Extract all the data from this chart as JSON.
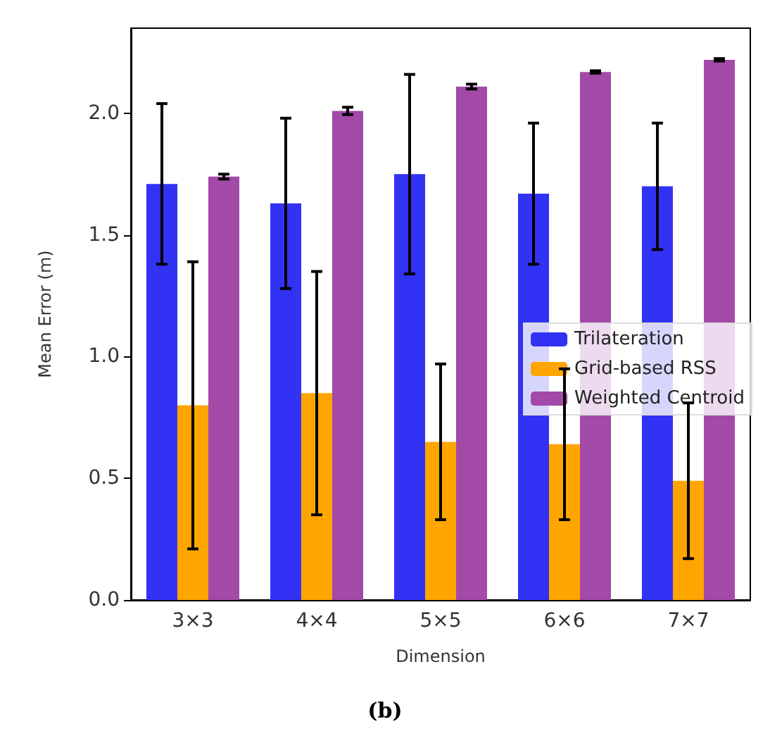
{
  "chart_data": {
    "type": "bar",
    "xlabel": "Dimension",
    "ylabel": "Mean Error (m)",
    "annotations": [
      "(b)"
    ],
    "categories": [
      "3×3",
      "4×4",
      "5×5",
      "6×6",
      "7×7"
    ],
    "series": [
      {
        "name": "Trilateration",
        "color": "#3232f5",
        "values": [
          1.71,
          1.63,
          1.75,
          1.67,
          1.7
        ],
        "errors": [
          0.33,
          0.35,
          0.41,
          0.29,
          0.26
        ]
      },
      {
        "name": "Grid-based RSS",
        "color": "#ffa500",
        "values": [
          0.8,
          0.85,
          0.65,
          0.64,
          0.49
        ],
        "errors": [
          0.59,
          0.5,
          0.32,
          0.31,
          0.32
        ]
      },
      {
        "name": "Weighted Centroid",
        "color": "#a349a8",
        "values": [
          1.74,
          2.01,
          2.11,
          2.17,
          2.22
        ],
        "errors": [
          0.01,
          0.015,
          0.01,
          0.005,
          0.005
        ]
      }
    ],
    "ylim": [
      0,
      2.35
    ],
    "yticks": [
      {
        "value": 0,
        "label": "0.0"
      },
      {
        "value": 0.5,
        "label": "0.5"
      },
      {
        "value": 1,
        "label": "1.0"
      },
      {
        "value": 1.5,
        "label": "1.5"
      },
      {
        "value": 2,
        "label": "2.0"
      }
    ],
    "grid": false,
    "legend": "right"
  }
}
